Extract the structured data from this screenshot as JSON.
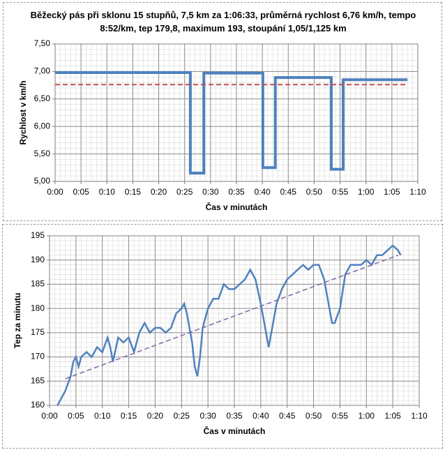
{
  "chart_data": [
    {
      "type": "line",
      "title": "Běžecký pás při sklonu 15 stupňů, 7,5 km za 1:06:33, průměrná rychlost 6,76 km/h, tempo 8:52/km, tep 179,8, maximum 193, stoupání 1,05/1,125 km",
      "x_label": "Čas v minutách",
      "y_label": "Rychlost v km/h",
      "xlim": [
        0,
        70
      ],
      "xticks": [
        {
          "value": 0,
          "label": "0:00"
        },
        {
          "value": 5,
          "label": "0:05"
        },
        {
          "value": 10,
          "label": "0:10"
        },
        {
          "value": 15,
          "label": "0:15"
        },
        {
          "value": 20,
          "label": "0:20"
        },
        {
          "value": 25,
          "label": "0:25"
        },
        {
          "value": 30,
          "label": "0:30"
        },
        {
          "value": 35,
          "label": "0:35"
        },
        {
          "value": 40,
          "label": "0:40"
        },
        {
          "value": 45,
          "label": "0:45"
        },
        {
          "value": 50,
          "label": "0:50"
        },
        {
          "value": 55,
          "label": "0:55"
        },
        {
          "value": 60,
          "label": "1:00"
        },
        {
          "value": 65,
          "label": "1:05"
        },
        {
          "value": 70,
          "label": "1:10"
        }
      ],
      "ylim": [
        5,
        7.5
      ],
      "yticks": [
        {
          "value": 5,
          "label": "5,00"
        },
        {
          "value": 5.5,
          "label": "5,50"
        },
        {
          "value": 6,
          "label": "6,00"
        },
        {
          "value": 6.5,
          "label": "6,50"
        },
        {
          "value": 7,
          "label": "7,00"
        },
        {
          "value": 7.5,
          "label": "7,50"
        }
      ],
      "grid": true,
      "minor_grid": true,
      "series": [
        {
          "color": "#4f81bd",
          "width": 4,
          "dash": false,
          "x": [
            0,
            26.1,
            26.1,
            28.7,
            28.7,
            40.1,
            40.1,
            42.5,
            42.5,
            53.3,
            53.3,
            55.6,
            55.6,
            68
          ],
          "values": [
            6.98,
            6.98,
            5.15,
            5.15,
            6.97,
            6.97,
            5.25,
            5.25,
            6.89,
            6.89,
            5.22,
            5.22,
            6.85,
            6.85
          ]
        },
        {
          "color": "#c0504d",
          "width": 2,
          "dash": true,
          "x": [
            0,
            68
          ],
          "values": [
            6.76,
            6.76
          ]
        }
      ]
    },
    {
      "type": "line",
      "x_label": "Čas v minutách",
      "y_label": "Tep za minutu",
      "xlim": [
        0,
        70
      ],
      "xticks": [
        {
          "value": 0,
          "label": "0:00"
        },
        {
          "value": 5,
          "label": "0:05"
        },
        {
          "value": 10,
          "label": "0:10"
        },
        {
          "value": 15,
          "label": "0:15"
        },
        {
          "value": 20,
          "label": "0:20"
        },
        {
          "value": 25,
          "label": "0:25"
        },
        {
          "value": 30,
          "label": "0:30"
        },
        {
          "value": 35,
          "label": "0:35"
        },
        {
          "value": 40,
          "label": "0:40"
        },
        {
          "value": 45,
          "label": "0:45"
        },
        {
          "value": 50,
          "label": "0:50"
        },
        {
          "value": 55,
          "label": "0:55"
        },
        {
          "value": 60,
          "label": "1:00"
        },
        {
          "value": 65,
          "label": "1:05"
        },
        {
          "value": 70,
          "label": "1:10"
        }
      ],
      "ylim": [
        160,
        195
      ],
      "yticks": [
        160,
        165,
        170,
        175,
        180,
        185,
        190,
        195
      ],
      "grid": true,
      "minor_grid": true,
      "series": [
        {
          "color": "#4f81bd",
          "width": 2.5,
          "dash": false,
          "x": [
            1.5,
            2,
            3,
            4,
            4.5,
            5,
            5.5,
            6,
            7,
            8,
            9,
            10,
            11,
            11.5,
            12,
            13,
            14,
            15,
            16,
            17,
            18,
            19,
            20,
            21,
            22,
            23,
            24,
            25,
            25.5,
            26,
            27,
            27.5,
            28,
            28.5,
            29,
            30,
            31,
            32,
            33,
            34,
            35,
            36,
            37,
            38,
            39,
            40,
            41,
            41.5,
            42,
            43,
            44,
            45,
            46,
            47,
            48,
            49,
            50,
            51,
            52,
            53,
            53.5,
            54,
            55,
            56,
            57,
            58,
            59,
            60,
            61,
            62,
            63,
            64,
            65,
            66,
            66.5
          ],
          "values": [
            160,
            161,
            163,
            166,
            169,
            170,
            168,
            170,
            171,
            170,
            172,
            171,
            174,
            172,
            169,
            174,
            173,
            174,
            171,
            175,
            177,
            175,
            176,
            176,
            175,
            176,
            179,
            180,
            181,
            179,
            173,
            168,
            166,
            170,
            176,
            180,
            182,
            182,
            185,
            184,
            184,
            185,
            186,
            188,
            186,
            181,
            175,
            172,
            175,
            181,
            184,
            186,
            187,
            188,
            189,
            188,
            189,
            189,
            186,
            180,
            177,
            177,
            180,
            187,
            189,
            189,
            189,
            190,
            189,
            191,
            191,
            192,
            193,
            192,
            191
          ]
        },
        {
          "color": "#8064a2",
          "width": 1.5,
          "dash": true,
          "x": [
            3,
            66
          ],
          "values": [
            165.5,
            191
          ]
        }
      ]
    }
  ]
}
